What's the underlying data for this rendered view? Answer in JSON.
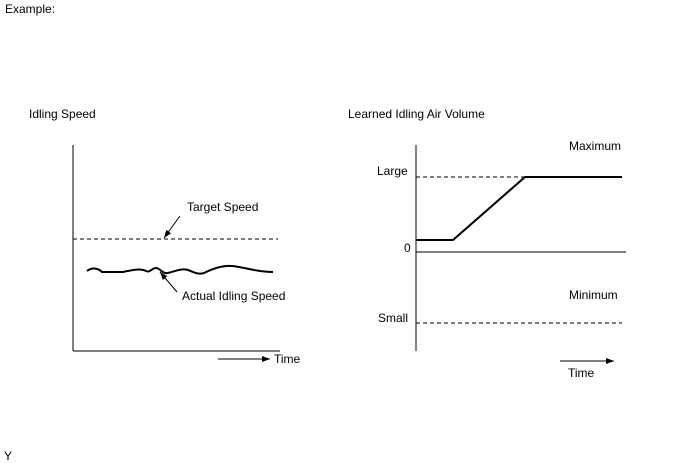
{
  "header": {
    "label": "Example:"
  },
  "footer": {
    "label": "Y"
  },
  "left_diagram": {
    "title": "Idling Speed",
    "target_label": "Target Speed",
    "actual_label": "Actual Idling Speed",
    "time_label": "Time"
  },
  "right_diagram": {
    "title": "Learned Idling Air Volume",
    "maximum_label": "Maximum",
    "minimum_label": "Minimum",
    "large_label": "Large",
    "small_label": "Small",
    "zero_label": "0",
    "time_label": "Time"
  },
  "colors": {
    "line": "#000000",
    "background": "#ffffff"
  }
}
